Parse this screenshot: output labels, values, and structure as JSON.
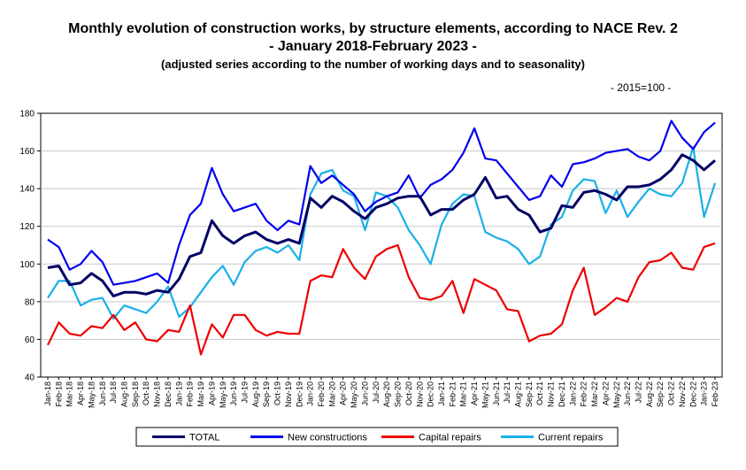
{
  "header": {
    "title_line1": "Monthly evolution of construction works, by structure elements, according to NACE Rev. 2",
    "title_line2": "- January 2018-February 2023 -",
    "subtitle": "(adjusted series according to the number of working days and to seasonality)",
    "base_note": "- 2015=100 -"
  },
  "chart_data": {
    "type": "line",
    "title": "Monthly evolution of construction works, by structure elements, according to NACE Rev. 2",
    "xlabel": "",
    "ylabel": "",
    "ylim": [
      40,
      180
    ],
    "yticks": [
      40,
      60,
      80,
      100,
      120,
      140,
      160,
      180
    ],
    "grid": "horizontal",
    "legend_position": "bottom",
    "categories": [
      "Jan-18",
      "Feb-18",
      "Mar-18",
      "Apr-18",
      "May-18",
      "Jun-18",
      "Jul-18",
      "Aug-18",
      "Sep-18",
      "Oct-18",
      "Nov-18",
      "Dec-18",
      "Jan-19",
      "Feb-19",
      "Mar-19",
      "Apr-19",
      "May-19",
      "Jun-19",
      "Jul-19",
      "Aug-19",
      "Sep-19",
      "Oct-19",
      "Nov-19",
      "Dec-19",
      "Jan-20",
      "Feb-20",
      "Mar-20",
      "Apr-20",
      "May-20",
      "Jun-20",
      "Jul-20",
      "Aug-20",
      "Sep-20",
      "Oct-20",
      "Nov-20",
      "Dec-20",
      "Jan-21",
      "Feb-21",
      "Mar-21",
      "Apr-21",
      "May-21",
      "Jun-21",
      "Jul-21",
      "Aug-21",
      "Sep-21",
      "Oct-21",
      "Nov-21",
      "Dec-21",
      "Jan-22",
      "Feb-22",
      "Mar-22",
      "Apr-22",
      "May-22",
      "Jun-22",
      "Jul-22",
      "Aug-22",
      "Sep-22",
      "Oct-22",
      "Nov-22",
      "Dec-22",
      "Jan-23",
      "Feb-23"
    ],
    "series": [
      {
        "name": "TOTAL",
        "color": "#000066",
        "values": [
          98,
          99,
          89,
          90,
          95,
          91,
          83,
          85,
          85,
          84,
          86,
          85,
          92,
          104,
          106,
          123,
          115,
          111,
          115,
          117,
          113,
          111,
          113,
          111,
          135,
          130,
          136,
          133,
          128,
          124,
          130,
          132,
          135,
          136,
          136,
          126,
          129,
          129,
          134,
          137,
          146,
          135,
          136,
          129,
          126,
          117,
          119,
          131,
          130,
          138,
          139,
          137,
          134,
          141,
          141,
          142,
          145,
          150,
          158,
          155,
          150,
          155
        ]
      },
      {
        "name": "New constructions",
        "color": "#0000ee",
        "values": [
          113,
          109,
          97,
          100,
          107,
          101,
          89,
          90,
          91,
          93,
          95,
          90,
          110,
          126,
          132,
          151,
          137,
          128,
          130,
          132,
          123,
          118,
          123,
          121,
          152,
          143,
          147,
          142,
          137,
          128,
          133,
          136,
          138,
          147,
          135,
          142,
          145,
          150,
          159,
          172,
          156,
          155,
          148,
          141,
          134,
          136,
          147,
          141,
          153,
          154,
          156,
          159,
          160,
          161,
          157,
          155,
          160,
          176,
          167,
          161,
          170,
          175
        ]
      },
      {
        "name": "Capital repairs",
        "color": "#ee0000",
        "values": [
          57,
          69,
          63,
          62,
          67,
          66,
          73,
          65,
          69,
          60,
          59,
          65,
          64,
          78,
          52,
          68,
          61,
          73,
          73,
          65,
          62,
          64,
          63,
          63,
          91,
          94,
          93,
          108,
          98,
          92,
          104,
          108,
          110,
          93,
          82,
          81,
          83,
          91,
          74,
          92,
          89,
          86,
          76,
          75,
          59,
          62,
          63,
          68,
          86,
          98,
          73,
          77,
          82,
          80,
          93,
          101,
          102,
          106,
          98,
          97,
          109,
          111
        ]
      },
      {
        "name": "Current repairs",
        "color": "#1ab0e8",
        "values": [
          82,
          91,
          91,
          78,
          81,
          82,
          71,
          78,
          76,
          74,
          80,
          88,
          72,
          77,
          85,
          93,
          99,
          89,
          101,
          107,
          109,
          106,
          110,
          102,
          137,
          148,
          150,
          139,
          136,
          118,
          138,
          136,
          130,
          118,
          110,
          100,
          121,
          132,
          137,
          136,
          117,
          114,
          112,
          108,
          100,
          104,
          121,
          125,
          139,
          145,
          144,
          127,
          139,
          125,
          133,
          140,
          137,
          136,
          143,
          162,
          125,
          143
        ]
      }
    ]
  }
}
